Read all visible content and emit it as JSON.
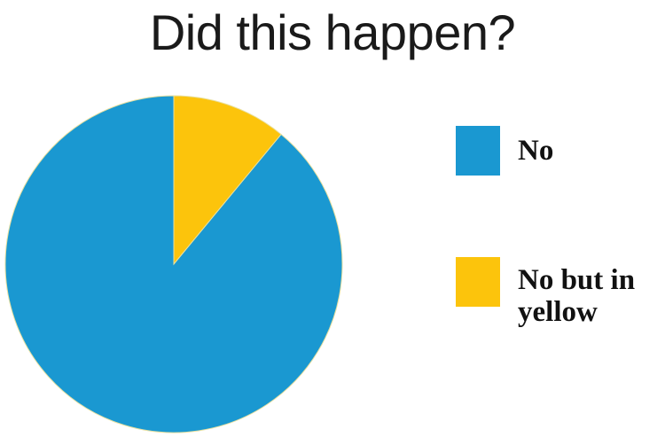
{
  "title": "Did this happen?",
  "chart_data": {
    "type": "pie",
    "title": "Did this happen?",
    "slices": [
      {
        "label": "No",
        "value": 89,
        "color": "#1a98d1"
      },
      {
        "label": "No but in yellow",
        "value": 11,
        "color": "#fcc40c"
      }
    ],
    "legend_position": "right"
  },
  "legend": {
    "no_label": "No",
    "yellow_label": "No but in yellow"
  }
}
